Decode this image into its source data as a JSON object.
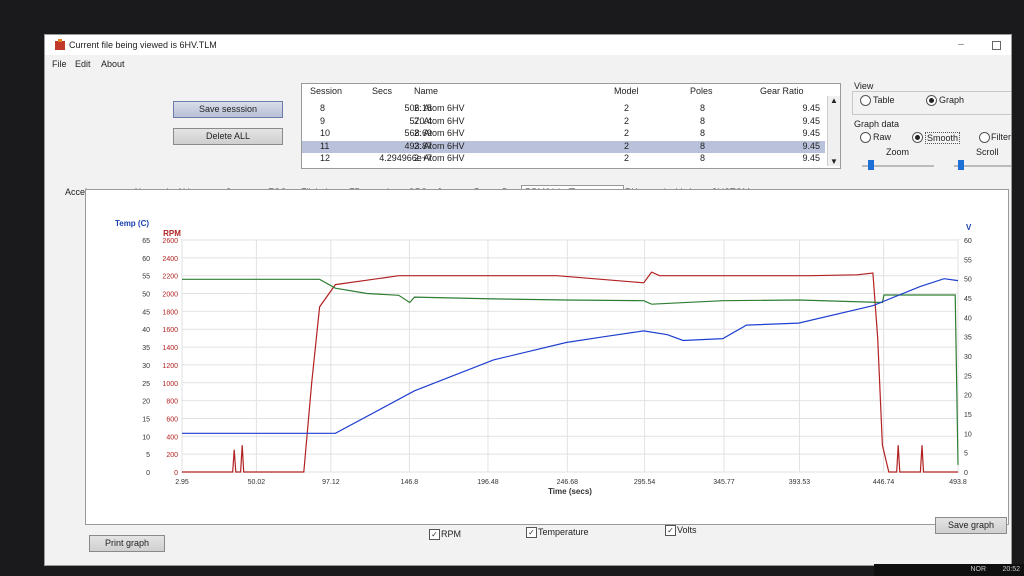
{
  "window": {
    "title": "Current file being viewed is 6HV.TLM"
  },
  "menu": [
    "File",
    "Edit",
    "About"
  ],
  "buttons": {
    "save_session": "Save sesssion",
    "delete_all": "Delete ALL",
    "print_graph": "Print graph",
    "save_graph": "Save graph"
  },
  "sessions": {
    "columns": [
      "Session",
      "Secs",
      "Name",
      "Model",
      "Poles",
      "Gear Ratio"
    ],
    "rows": [
      [
        "8",
        "506.15",
        "2: Atom 6HV",
        "2",
        "8",
        "9.45"
      ],
      [
        "9",
        "570.4",
        "2: Atom 6HV",
        "2",
        "8",
        "9.45"
      ],
      [
        "10",
        "568.69",
        "2: Atom 6HV",
        "2",
        "8",
        "9.45"
      ],
      [
        "11",
        "493.87",
        "2: Atom 6HV",
        "2",
        "8",
        "9.45"
      ],
      [
        "12",
        "4.294966e+7",
        "2: Atom 6HV",
        "2",
        "8",
        "9.45"
      ]
    ],
    "selected_index": 3
  },
  "view": {
    "label": "View",
    "table": "Table",
    "graph": "Graph",
    "selected": "Graph"
  },
  "graph_data": {
    "label": "Graph data",
    "raw": "Raw",
    "smooth": "Smooth",
    "filter": "Filter",
    "selected": "Smooth",
    "zoom": "Zoom",
    "scroll": "Scroll"
  },
  "tabs": [
    "Accelerometer",
    "Airspeed",
    "Altimeter",
    "Current",
    "ESC",
    "Flight Log",
    "FP capacity",
    "GPS",
    "Jetcat",
    "Power Box",
    "RPM/Volts/Temperature",
    "RX capacity",
    "Vario",
    "CUSTOM"
  ],
  "active_tab": "RPM/Volts/Temperature",
  "checkboxes": {
    "rpm": "RPM",
    "temperature": "Temperature",
    "volts": "Volts"
  },
  "colors": {
    "rpm": "#b22222",
    "temp": "#2e7d32",
    "volts": "#1f3fd0"
  },
  "chart_data": {
    "type": "line",
    "xlabel": "Time (secs)",
    "x_ticks": [
      "2.95",
      "50.02",
      "97.12",
      "146.8",
      "196.48",
      "246.68",
      "295.54",
      "345.77",
      "393.53",
      "446.74",
      "493.8"
    ],
    "xlim": [
      2.95,
      493.8
    ],
    "y_left_temp": {
      "label": "Temp (C)",
      "range": [
        0,
        65
      ],
      "ticks": [
        0,
        5,
        10,
        15,
        20,
        25,
        30,
        35,
        40,
        45,
        50,
        55,
        60,
        65
      ]
    },
    "y_left_rpm": {
      "label": "RPM",
      "range": [
        0,
        2600
      ],
      "ticks": [
        0,
        200,
        400,
        600,
        800,
        1000,
        1200,
        1400,
        1600,
        1800,
        2000,
        2200,
        2400,
        2600
      ]
    },
    "y_right_volts": {
      "label": "V",
      "range": [
        0,
        60
      ],
      "ticks": [
        0,
        5,
        10,
        15,
        20,
        25,
        30,
        35,
        40,
        45,
        50,
        55,
        60
      ]
    },
    "series": [
      {
        "name": "RPM",
        "axis": "rpm",
        "x": [
          2.95,
          35,
          36,
          37,
          40,
          41,
          42,
          80,
          85,
          90,
          100,
          120,
          140,
          180,
          240,
          295,
          300,
          305,
          350,
          400,
          430,
          440,
          443,
          446,
          450,
          455,
          456,
          457,
          460,
          470,
          471,
          472,
          480,
          493.8
        ],
        "y": [
          0,
          0,
          250,
          0,
          0,
          300,
          0,
          0,
          1000,
          1850,
          2100,
          2150,
          2200,
          2200,
          2200,
          2120,
          2240,
          2200,
          2200,
          2200,
          2210,
          2230,
          1500,
          300,
          0,
          0,
          300,
          0,
          0,
          0,
          300,
          0,
          0,
          0
        ]
      },
      {
        "name": "Temperature",
        "axis": "temp",
        "x": [
          2.95,
          90,
          100,
          120,
          140,
          147,
          150,
          200,
          246,
          295,
          300,
          345,
          393,
          446,
          447,
          492,
          493.8
        ],
        "y": [
          54,
          54,
          51.5,
          50,
          49.5,
          47.5,
          49,
          48.5,
          48.2,
          48,
          47,
          48,
          48.2,
          47.5,
          49.6,
          49.6,
          2
        ]
      },
      {
        "name": "Volts",
        "axis": "volts",
        "x": [
          2.95,
          100,
          150,
          200,
          246,
          270,
          295,
          310,
          320,
          345,
          360,
          393,
          440,
          470,
          485,
          493.8
        ],
        "y": [
          10,
          10,
          21,
          29,
          33.5,
          35,
          36.5,
          35.5,
          34,
          34.5,
          38,
          38.5,
          43,
          48,
          50,
          49.5
        ]
      }
    ]
  },
  "taskbar": {
    "time": "20:52",
    "lang": "NOR"
  }
}
